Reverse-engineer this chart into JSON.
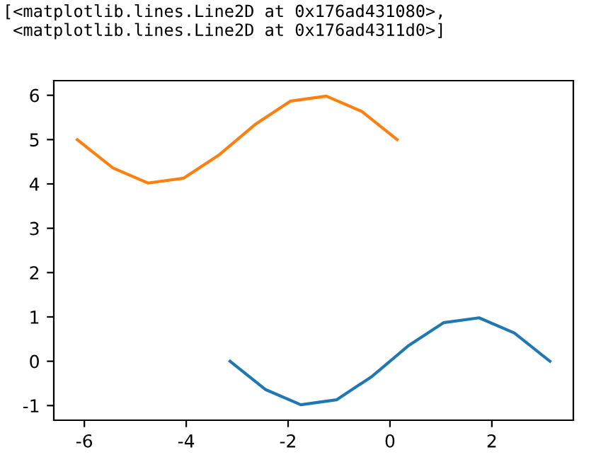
{
  "chart_data": {
    "type": "line",
    "annotations": [
      "[<matplotlib.lines.Line2D at 0x176ad431080>,\n <matplotlib.lines.Line2D at 0x176ad4311d0>]"
    ],
    "series": [
      {
        "color": "#1f77b4",
        "x": [
          -3.14,
          -2.44,
          -1.75,
          -1.05,
          -0.35,
          0.35,
          1.05,
          1.75,
          2.44,
          3.14
        ],
        "values": [
          0.0,
          -0.64,
          -0.98,
          -0.87,
          -0.34,
          0.34,
          0.87,
          0.98,
          0.64,
          0.0
        ]
      },
      {
        "color": "#ff7f0e",
        "x": [
          -6.14,
          -5.44,
          -4.75,
          -4.05,
          -3.35,
          -2.65,
          -1.95,
          -1.25,
          -0.56,
          0.14
        ],
        "values": [
          5.0,
          4.36,
          4.02,
          4.13,
          4.66,
          5.34,
          5.87,
          5.98,
          5.64,
          5.0
        ]
      }
    ],
    "xlim": [
      -6.6,
      3.6
    ],
    "ylim": [
      -1.33,
      6.33
    ],
    "xticks": [
      -6,
      -4,
      -2,
      0,
      2
    ],
    "yticks": [
      -1,
      0,
      1,
      2,
      3,
      4,
      5,
      6
    ],
    "grid": false,
    "legend": false,
    "marker": "none",
    "line_style": "solid"
  }
}
